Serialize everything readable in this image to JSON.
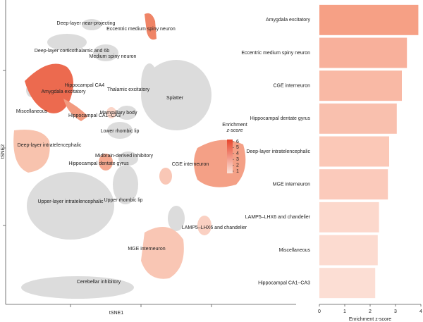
{
  "chart_data": [
    {
      "type": "embedding",
      "xlabel": "tSNE1",
      "ylabel": "tSNE2",
      "annotations": [
        "Deep-layer near-projecting",
        "Eccentric medium spiny neuron",
        "Deep-layer corticothalamic and 6b",
        "Medium spiny neuron",
        "Hippocampal CA4",
        "Thalamic excitatory",
        "Amygdala excitatory",
        "Splatter",
        "Miscellaneous",
        "Hippocampal CA1–CA3",
        "Mammillary body",
        "Lower rhombic lip",
        "Deep-layer intratelencephalic",
        "Midbrain-derived inhibitory",
        "Hippocampal dentate gyrus",
        "CGE interneuron",
        "Upper rhombic lip",
        "Upper-layer intratelencephalic",
        "LAMP5–LHX6 and chandelier",
        "MGE interneuron",
        "Cerebellar inhibitory"
      ],
      "colorbar": {
        "title": [
          "Enrichment",
          "z-score"
        ],
        "lim": [
          1,
          6
        ],
        "ticks": [
          1,
          2,
          3,
          4,
          5,
          6
        ],
        "colors": [
          "#fbe3da",
          "#e8442a"
        ]
      }
    },
    {
      "type": "barh",
      "categories": [
        "Amygdala excitatory",
        "Eccentric medium spiny neuron",
        "CGE interneuron",
        "Hippocampal dentate gyrus",
        "Deep-layer intratelencephalic",
        "MGE interneuron",
        "LAMP5–LHX6 and chandelier",
        "Miscellaneous",
        "Hippocampal CA1–CA3"
      ],
      "values": [
        3.9,
        3.45,
        3.25,
        3.05,
        2.75,
        2.7,
        2.35,
        2.3,
        2.2
      ],
      "colors": [
        "#f6a085",
        "#f8b09b",
        "#f9b9a5",
        "#f9c0ae",
        "#fbc8b7",
        "#fbcabb",
        "#fcd8cc",
        "#fcdbd0",
        "#fcded4"
      ],
      "xlabel": "Enrichment z-score",
      "xlim": [
        0,
        4
      ],
      "xticks": [
        0,
        1,
        2,
        3,
        4
      ]
    }
  ]
}
